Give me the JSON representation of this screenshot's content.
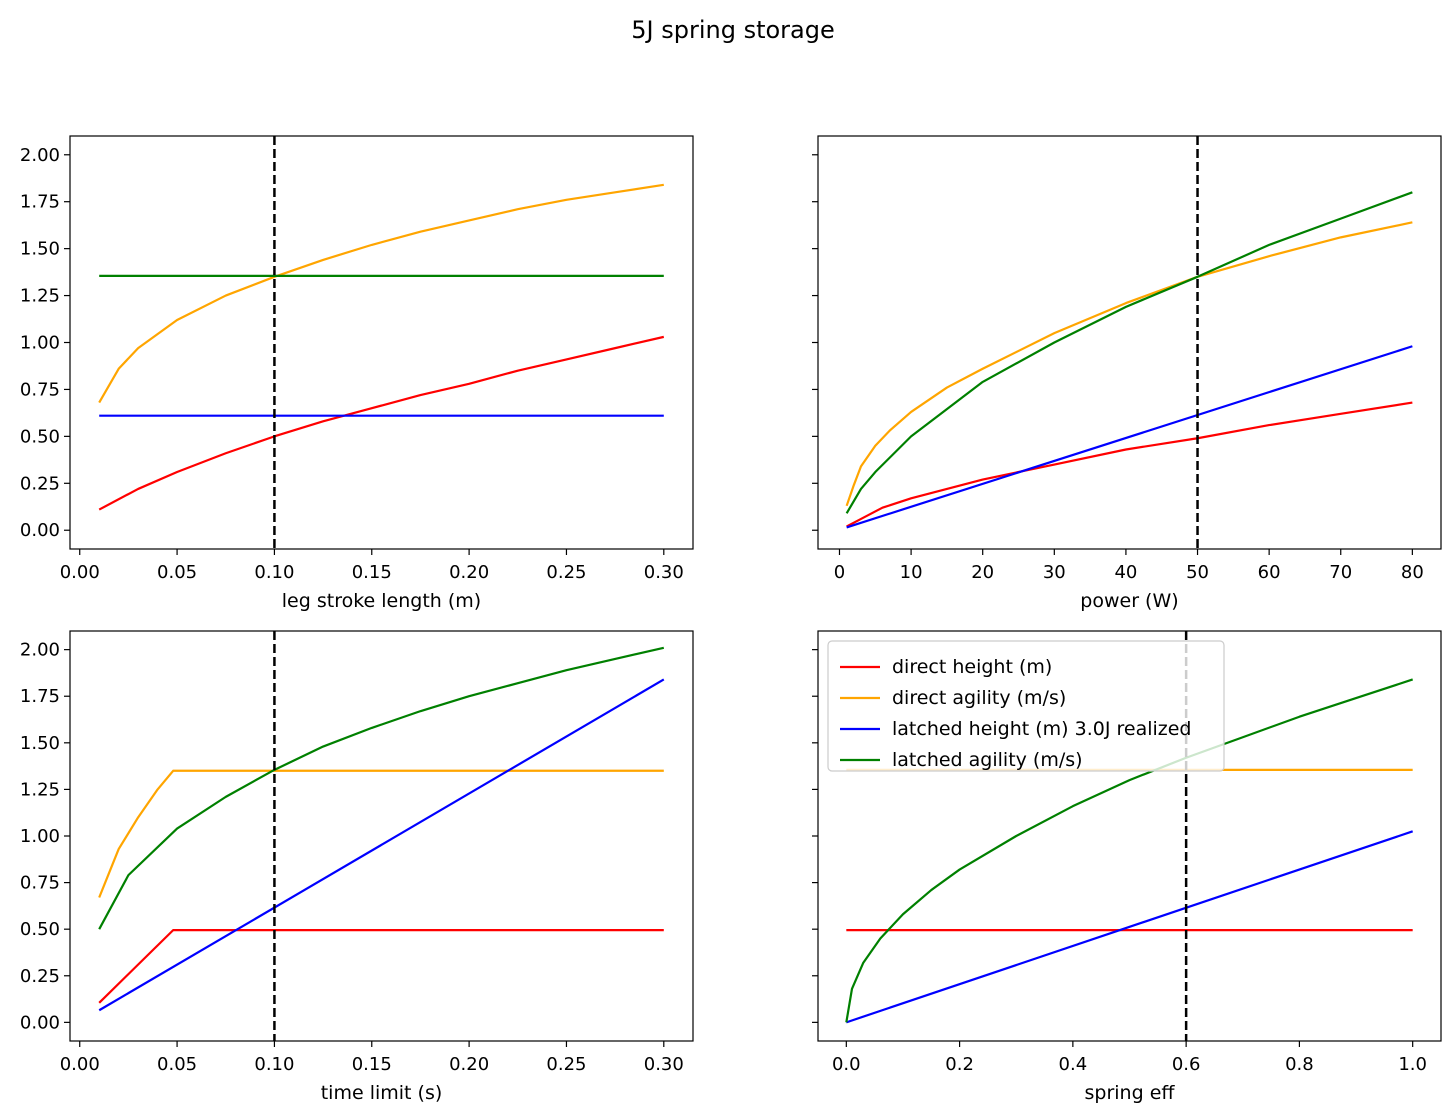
{
  "figure": {
    "title": "5J spring storage"
  },
  "colors": {
    "direct_height": "#ff0000",
    "direct_agility": "#ffa500",
    "latched_height": "#0000ff",
    "latched_agility": "#008000",
    "marker": "#000000"
  },
  "chart_data": [
    {
      "type": "line",
      "xlabel": "leg stroke length (m)",
      "ylabel": "",
      "xlim": [
        -0.005,
        0.315
      ],
      "ylim": [
        -0.1,
        2.1
      ],
      "xticks": [
        0.0,
        0.05,
        0.1,
        0.15,
        0.2,
        0.25,
        0.3
      ],
      "xtick_labels": [
        "0.00",
        "0.05",
        "0.10",
        "0.15",
        "0.20",
        "0.25",
        "0.30"
      ],
      "yticks": [
        0.0,
        0.25,
        0.5,
        0.75,
        1.0,
        1.25,
        1.5,
        1.75,
        2.0
      ],
      "ytick_labels": [
        "0.00",
        "0.25",
        "0.50",
        "0.75",
        "1.00",
        "1.25",
        "1.50",
        "1.75",
        "2.00"
      ],
      "show_ytick_labels": true,
      "vline": 0.1,
      "series": [
        {
          "key": "direct_height",
          "x": [
            0.01,
            0.03,
            0.05,
            0.075,
            0.1,
            0.125,
            0.15,
            0.175,
            0.2,
            0.225,
            0.25,
            0.275,
            0.3
          ],
          "y": [
            0.11,
            0.22,
            0.31,
            0.41,
            0.5,
            0.58,
            0.65,
            0.72,
            0.78,
            0.85,
            0.91,
            0.97,
            1.03
          ]
        },
        {
          "key": "direct_agility",
          "x": [
            0.01,
            0.02,
            0.03,
            0.05,
            0.075,
            0.1,
            0.125,
            0.15,
            0.175,
            0.2,
            0.225,
            0.25,
            0.275,
            0.3
          ],
          "y": [
            0.68,
            0.86,
            0.97,
            1.12,
            1.25,
            1.35,
            1.44,
            1.52,
            1.59,
            1.65,
            1.71,
            1.76,
            1.8,
            1.84
          ]
        },
        {
          "key": "latched_height",
          "x": [
            0.01,
            0.3
          ],
          "y": [
            0.61,
            0.61
          ]
        },
        {
          "key": "latched_agility",
          "x": [
            0.01,
            0.3
          ],
          "y": [
            1.355,
            1.355
          ]
        }
      ]
    },
    {
      "type": "line",
      "xlabel": "power (W)",
      "ylabel": "",
      "xlim": [
        -3,
        84
      ],
      "ylim": [
        -0.1,
        2.1
      ],
      "xticks": [
        0,
        10,
        20,
        30,
        40,
        50,
        60,
        70,
        80
      ],
      "xtick_labels": [
        "0",
        "10",
        "20",
        "30",
        "40",
        "50",
        "60",
        "70",
        "80"
      ],
      "yticks": [
        0.0,
        0.25,
        0.5,
        0.75,
        1.0,
        1.25,
        1.5,
        1.75,
        2.0
      ],
      "ytick_labels": [],
      "show_ytick_labels": false,
      "vline": 50,
      "series": [
        {
          "key": "direct_height",
          "x": [
            1,
            3,
            6,
            10,
            20,
            30,
            40,
            50,
            60,
            70,
            80
          ],
          "y": [
            0.02,
            0.06,
            0.12,
            0.17,
            0.27,
            0.35,
            0.43,
            0.49,
            0.56,
            0.62,
            0.68
          ]
        },
        {
          "key": "direct_agility",
          "x": [
            1,
            2,
            3,
            5,
            7,
            10,
            15,
            20,
            30,
            40,
            50,
            60,
            70,
            80
          ],
          "y": [
            0.13,
            0.24,
            0.34,
            0.45,
            0.53,
            0.63,
            0.76,
            0.86,
            1.05,
            1.21,
            1.35,
            1.46,
            1.56,
            1.64
          ]
        },
        {
          "key": "latched_height",
          "x": [
            1,
            80
          ],
          "y": [
            0.015,
            0.98
          ]
        },
        {
          "key": "latched_agility",
          "x": [
            1,
            3,
            5,
            10,
            20,
            30,
            40,
            50,
            60,
            70,
            80
          ],
          "y": [
            0.09,
            0.22,
            0.31,
            0.5,
            0.79,
            1.0,
            1.19,
            1.35,
            1.52,
            1.66,
            1.8
          ]
        }
      ]
    },
    {
      "type": "line",
      "xlabel": "time limit (s)",
      "ylabel": "",
      "xlim": [
        -0.005,
        0.315
      ],
      "ylim": [
        -0.1,
        2.1
      ],
      "xticks": [
        0.0,
        0.05,
        0.1,
        0.15,
        0.2,
        0.25,
        0.3
      ],
      "xtick_labels": [
        "0.00",
        "0.05",
        "0.10",
        "0.15",
        "0.20",
        "0.25",
        "0.30"
      ],
      "yticks": [
        0.0,
        0.25,
        0.5,
        0.75,
        1.0,
        1.25,
        1.5,
        1.75,
        2.0
      ],
      "ytick_labels": [
        "0.00",
        "0.25",
        "0.50",
        "0.75",
        "1.00",
        "1.25",
        "1.50",
        "1.75",
        "2.00"
      ],
      "show_ytick_labels": true,
      "vline": 0.1,
      "series": [
        {
          "key": "direct_height",
          "x": [
            0.01,
            0.048,
            0.3
          ],
          "y": [
            0.105,
            0.495,
            0.495
          ]
        },
        {
          "key": "direct_agility",
          "x": [
            0.01,
            0.02,
            0.03,
            0.04,
            0.048,
            0.3
          ],
          "y": [
            0.67,
            0.93,
            1.1,
            1.25,
            1.35,
            1.35
          ]
        },
        {
          "key": "latched_height",
          "x": [
            0.01,
            0.3
          ],
          "y": [
            0.065,
            1.84
          ]
        },
        {
          "key": "latched_agility",
          "x": [
            0.01,
            0.025,
            0.05,
            0.075,
            0.1,
            0.125,
            0.15,
            0.175,
            0.2,
            0.225,
            0.25,
            0.275,
            0.3
          ],
          "y": [
            0.5,
            0.79,
            1.04,
            1.21,
            1.355,
            1.48,
            1.58,
            1.67,
            1.75,
            1.82,
            1.89,
            1.95,
            2.01
          ]
        }
      ]
    },
    {
      "type": "line",
      "xlabel": "spring eff",
      "ylabel": "",
      "xlim": [
        -0.05,
        1.05
      ],
      "ylim": [
        -0.1,
        2.1
      ],
      "xticks": [
        0.0,
        0.2,
        0.4,
        0.6,
        0.8,
        1.0
      ],
      "xtick_labels": [
        "0.0",
        "0.2",
        "0.4",
        "0.6",
        "0.8",
        "1.0"
      ],
      "yticks": [
        0.0,
        0.25,
        0.5,
        0.75,
        1.0,
        1.25,
        1.5,
        1.75,
        2.0
      ],
      "ytick_labels": [],
      "show_ytick_labels": false,
      "vline": 0.6,
      "legend": "upper-left",
      "series": [
        {
          "key": "direct_height",
          "name": "direct height (m)",
          "x": [
            0.0,
            1.0
          ],
          "y": [
            0.495,
            0.495
          ]
        },
        {
          "key": "direct_agility",
          "name": "direct agility (m/s)",
          "x": [
            0.0,
            1.0
          ],
          "y": [
            1.355,
            1.355
          ]
        },
        {
          "key": "latched_height",
          "name": "latched height (m) 3.0J realized",
          "x": [
            0.0,
            1.0
          ],
          "y": [
            0.0,
            1.025
          ]
        },
        {
          "key": "latched_agility",
          "name": "latched agility (m/s)",
          "x": [
            0.0,
            0.01,
            0.03,
            0.06,
            0.1,
            0.15,
            0.2,
            0.3,
            0.4,
            0.5,
            0.6,
            0.7,
            0.8,
            0.9,
            1.0
          ],
          "y": [
            0.0,
            0.18,
            0.32,
            0.45,
            0.58,
            0.71,
            0.82,
            1.0,
            1.16,
            1.3,
            1.42,
            1.53,
            1.64,
            1.74,
            1.84
          ]
        }
      ]
    }
  ]
}
